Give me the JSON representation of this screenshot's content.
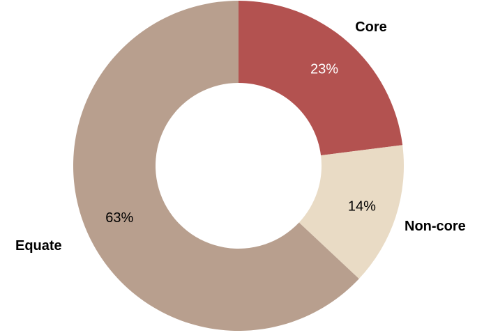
{
  "chart_data": {
    "type": "pie",
    "variant": "donut",
    "title": "",
    "legend": "none",
    "slices": [
      {
        "label": "Core",
        "value": 23,
        "value_label": "23%",
        "color": "#b35250",
        "value_label_color": "#ffffff"
      },
      {
        "label": "Non-core",
        "value": 14,
        "value_label": "14%",
        "color": "#e9dbc5",
        "value_label_color": "#000000"
      },
      {
        "label": "Equate",
        "value": 63,
        "value_label": "63%",
        "color": "#b89f8e",
        "value_label_color": "#000000"
      }
    ]
  }
}
